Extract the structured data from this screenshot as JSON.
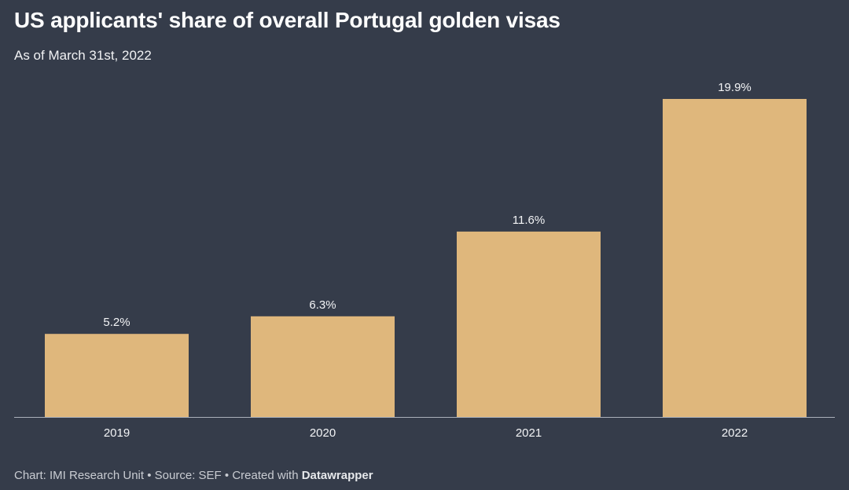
{
  "title": "US applicants' share of overall Portugal golden visas",
  "subtitle": "As of March 31st, 2022",
  "footer": {
    "chart_credit": "Chart: IMI Research Unit",
    "separator": "•",
    "source": "Source: SEF",
    "created_with": "Created with",
    "brand": "Datawrapper"
  },
  "colors": {
    "background": "#353c4a",
    "bar": "#dfb77c",
    "text": "#ffffff"
  },
  "chart_data": {
    "type": "bar",
    "categories": [
      "2019",
      "2020",
      "2021",
      "2022"
    ],
    "values": [
      5.2,
      6.3,
      11.6,
      19.9
    ],
    "value_labels": [
      "5.2%",
      "6.3%",
      "11.6%",
      "19.9%"
    ],
    "title": "US applicants' share of overall Portugal golden visas",
    "subtitle": "As of March 31st, 2022",
    "xlabel": "",
    "ylabel": "",
    "ylim": [
      0,
      19.9
    ],
    "unit": "%",
    "grid": false,
    "legend": "none"
  }
}
